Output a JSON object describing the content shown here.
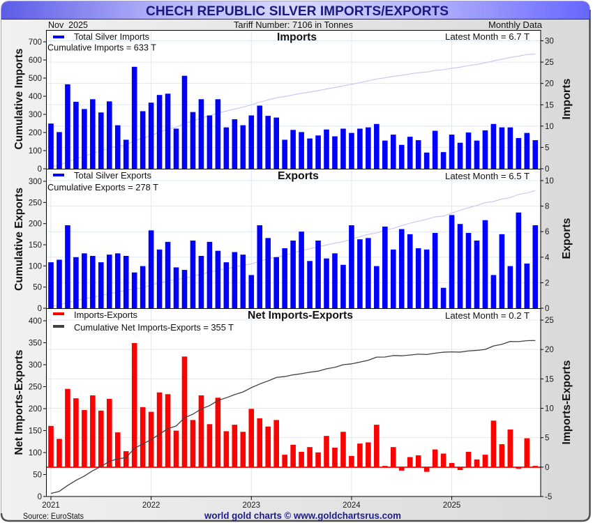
{
  "title": "CHECH REPUBLIC SILVER IMPORTS/EXPORTS",
  "header": {
    "date": "Nov  2025",
    "tariff": "Tariff Number: 7106 in Tonnes",
    "frequency": "Monthly Data"
  },
  "footer": {
    "source": "Source: EuroStats",
    "credit": "world gold charts © www.goldchartsrus.com"
  },
  "colors": {
    "title_bar": "#7070ff",
    "title_text": "#1a1a80",
    "credit_text": "#1c1c8c",
    "background": "#e6e6e6"
  },
  "chart_data": [
    {
      "type": "bar",
      "title": "Imports",
      "xlabel": "",
      "ylabel": "Cumulative Imports",
      "y2label": "Imports",
      "ylim": [
        0,
        700
      ],
      "y2lim": [
        0,
        30
      ],
      "yticks": [
        "0",
        "100",
        "200",
        "300",
        "400",
        "500",
        "600",
        "700"
      ],
      "y2ticks": [
        "0",
        "5",
        "10",
        "15",
        "20",
        "25",
        "30"
      ],
      "grid": true,
      "legend_position": "top-left",
      "legend": [
        {
          "label": "Total Silver Imports",
          "color": "#0000ff"
        }
      ],
      "annotations": {
        "cumulative": "Cumulative Imports = 633 T",
        "latest": "Latest Month = 6.7 T"
      },
      "categories": [
        "2021-01",
        "2021-02",
        "2021-03",
        "2021-04",
        "2021-05",
        "2021-06",
        "2021-07",
        "2021-08",
        "2021-09",
        "2021-10",
        "2021-11",
        "2021-12",
        "2022-01",
        "2022-02",
        "2022-03",
        "2022-04",
        "2022-05",
        "2022-06",
        "2022-07",
        "2022-08",
        "2022-09",
        "2022-10",
        "2022-11",
        "2022-12",
        "2023-01",
        "2023-02",
        "2023-03",
        "2023-04",
        "2023-05",
        "2023-06",
        "2023-07",
        "2023-08",
        "2023-09",
        "2023-10",
        "2023-11",
        "2023-12",
        "2024-01",
        "2024-02",
        "2024-03",
        "2024-04",
        "2024-05",
        "2024-06",
        "2024-07",
        "2024-08",
        "2024-09",
        "2024-10",
        "2024-11",
        "2024-12",
        "2025-01",
        "2025-02",
        "2025-03",
        "2025-04",
        "2025-05",
        "2025-06",
        "2025-07",
        "2025-08",
        "2025-09",
        "2025-10",
        "2025-11"
      ],
      "series": [
        {
          "name": "Total Silver Imports",
          "type": "bar",
          "axis": "right",
          "unit": "T",
          "color": "#0000ff",
          "values": [
            10.6,
            8.6,
            19.8,
            15.7,
            14.0,
            16.3,
            13.2,
            15.8,
            10.2,
            6.8,
            23.9,
            13.5,
            15.5,
            17.3,
            17.6,
            9.4,
            21.8,
            13.3,
            16.3,
            12.5,
            16.3,
            9.7,
            11.6,
            10.2,
            12.5,
            14.8,
            12.4,
            12.0,
            6.8,
            9.1,
            8.6,
            7.1,
            7.8,
            9.2,
            7.6,
            9.4,
            8.4,
            9.4,
            9.7,
            10.5,
            6.6,
            8.0,
            5.6,
            7.5,
            6.7,
            3.8,
            8.9,
            3.9,
            8.0,
            6.1,
            8.5,
            6.6,
            9.0,
            10.5,
            9.7,
            9.7,
            7.2,
            8.4,
            6.7
          ]
        },
        {
          "name": "Cumulative Imports",
          "type": "line",
          "axis": "left",
          "unit": "T",
          "color": "#c4c4f6",
          "values": [
            10.6,
            19.2,
            39.0,
            54.7,
            68.7,
            85.0,
            98.2,
            114.0,
            124.2,
            131.0,
            154.9,
            168.4,
            183.9,
            201.2,
            218.8,
            228.2,
            250.0,
            263.3,
            279.6,
            292.1,
            308.4,
            318.1,
            329.7,
            339.9,
            352.4,
            367.2,
            379.6,
            391.6,
            398.4,
            407.5,
            416.1,
            423.2,
            431.0,
            440.2,
            447.8,
            457.2,
            465.6,
            475.0,
            484.7,
            495.2,
            501.8,
            509.8,
            515.4,
            522.9,
            529.6,
            533.4,
            542.3,
            546.2,
            554.2,
            560.3,
            568.8,
            575.4,
            584.4,
            594.9,
            604.6,
            614.3,
            621.5,
            629.9,
            633.0
          ]
        }
      ]
    },
    {
      "type": "bar",
      "title": "Exports",
      "xlabel": "",
      "ylabel": "Cumulative Exports",
      "y2label": "Exports",
      "ylim": [
        0,
        300
      ],
      "y2lim": [
        0,
        10
      ],
      "yticks": [
        "0",
        "50",
        "100",
        "150",
        "200",
        "250",
        "300"
      ],
      "y2ticks": [
        "0",
        "2",
        "4",
        "6",
        "8",
        "10"
      ],
      "grid": true,
      "legend_position": "top-left",
      "legend": [
        {
          "label": "Total Silver Exports",
          "color": "#0000ff"
        }
      ],
      "annotations": {
        "cumulative": "Cumulative Exports = 278 T",
        "latest": "Latest Month = 6.5 T"
      },
      "categories": [
        "2021-01",
        "2021-02",
        "2021-03",
        "2021-04",
        "2021-05",
        "2021-06",
        "2021-07",
        "2021-08",
        "2021-09",
        "2021-10",
        "2021-11",
        "2021-12",
        "2022-01",
        "2022-02",
        "2022-03",
        "2022-04",
        "2022-05",
        "2022-06",
        "2022-07",
        "2022-08",
        "2022-09",
        "2022-10",
        "2022-11",
        "2022-12",
        "2023-01",
        "2023-02",
        "2023-03",
        "2023-04",
        "2023-05",
        "2023-06",
        "2023-07",
        "2023-08",
        "2023-09",
        "2023-10",
        "2023-11",
        "2023-12",
        "2024-01",
        "2024-02",
        "2024-03",
        "2024-04",
        "2024-05",
        "2024-06",
        "2024-07",
        "2024-08",
        "2024-09",
        "2024-10",
        "2024-11",
        "2024-12",
        "2025-01",
        "2025-02",
        "2025-03",
        "2025-04",
        "2025-05",
        "2025-06",
        "2025-07",
        "2025-08",
        "2025-09",
        "2025-10",
        "2025-11"
      ],
      "series": [
        {
          "name": "Total Silver Exports",
          "type": "bar",
          "axis": "right",
          "unit": "T",
          "color": "#0000ff",
          "values": [
            3.6,
            3.8,
            6.5,
            4.0,
            4.3,
            4.1,
            3.6,
            4.2,
            4.3,
            4.1,
            2.8,
            3.3,
            6.1,
            4.6,
            5.2,
            3.2,
            3.0,
            5.3,
            4.1,
            5.2,
            4.5,
            3.6,
            4.4,
            4.2,
            2.6,
            6.5,
            5.5,
            4.0,
            4.7,
            5.3,
            6.0,
            3.7,
            5.3,
            3.9,
            4.3,
            3.4,
            6.5,
            5.4,
            5.5,
            3.3,
            6.4,
            4.6,
            6.2,
            5.8,
            4.7,
            4.6,
            5.9,
            1.6,
            7.3,
            6.6,
            5.9,
            5.3,
            6.9,
            2.6,
            5.8,
            3.3,
            7.5,
            3.5,
            6.5
          ]
        },
        {
          "name": "Cumulative Exports",
          "type": "line",
          "axis": "left",
          "unit": "T",
          "color": "#c4c4f6",
          "values": [
            3.6,
            7.4,
            13.9,
            17.9,
            22.2,
            26.3,
            29.9,
            34.1,
            38.4,
            42.5,
            45.3,
            48.6,
            54.7,
            59.3,
            64.5,
            67.7,
            70.7,
            76.0,
            80.1,
            85.3,
            89.8,
            93.4,
            97.8,
            102.0,
            104.6,
            111.1,
            116.6,
            120.6,
            125.3,
            130.6,
            136.6,
            140.3,
            145.6,
            149.5,
            153.8,
            157.2,
            163.7,
            169.1,
            174.6,
            177.9,
            184.3,
            188.9,
            195.1,
            200.9,
            205.6,
            210.2,
            216.1,
            217.7,
            225.0,
            231.6,
            237.5,
            242.8,
            249.7,
            252.3,
            258.1,
            261.4,
            268.9,
            272.4,
            278.0
          ]
        }
      ]
    },
    {
      "type": "bar",
      "title": "Net Imports-Exports",
      "xlabel": "",
      "ylabel": "Net Imports-Exports",
      "y2label": "Imports-Exports",
      "ylim": [
        0,
        400
      ],
      "y2lim": [
        -5,
        25
      ],
      "yticks": [
        "0",
        "50",
        "100",
        "150",
        "200",
        "250",
        "300",
        "350",
        "400"
      ],
      "y2ticks": [
        "-5",
        "0",
        "5",
        "10",
        "15",
        "20",
        "25"
      ],
      "xticks": [
        "2021",
        "2022",
        "2023",
        "2024",
        "2025"
      ],
      "grid": true,
      "legend_position": "top-left",
      "legend": [
        {
          "label": "Imports-Exports",
          "color": "#ff0000"
        },
        {
          "label": "Cumulative Net Imports-Exports = 355 T",
          "color": "#404040"
        }
      ],
      "annotations": {
        "latest": "Latest Month = 0.2 T"
      },
      "categories": [
        "2021-01",
        "2021-02",
        "2021-03",
        "2021-04",
        "2021-05",
        "2021-06",
        "2021-07",
        "2021-08",
        "2021-09",
        "2021-10",
        "2021-11",
        "2021-12",
        "2022-01",
        "2022-02",
        "2022-03",
        "2022-04",
        "2022-05",
        "2022-06",
        "2022-07",
        "2022-08",
        "2022-09",
        "2022-10",
        "2022-11",
        "2022-12",
        "2023-01",
        "2023-02",
        "2023-03",
        "2023-04",
        "2023-05",
        "2023-06",
        "2023-07",
        "2023-08",
        "2023-09",
        "2023-10",
        "2023-11",
        "2023-12",
        "2024-01",
        "2024-02",
        "2024-03",
        "2024-04",
        "2024-05",
        "2024-06",
        "2024-07",
        "2024-08",
        "2024-09",
        "2024-10",
        "2024-11",
        "2024-12",
        "2025-01",
        "2025-02",
        "2025-03",
        "2025-04",
        "2025-05",
        "2025-06",
        "2025-07",
        "2025-08",
        "2025-09",
        "2025-10",
        "2025-11"
      ],
      "series": [
        {
          "name": "Imports-Exports",
          "type": "bar",
          "axis": "right",
          "unit": "T",
          "color": "#ff0000",
          "values": [
            7.0,
            4.8,
            13.3,
            11.7,
            9.7,
            12.2,
            9.6,
            11.6,
            5.9,
            2.7,
            21.1,
            10.2,
            9.4,
            12.7,
            12.4,
            6.2,
            18.8,
            8.0,
            12.2,
            7.3,
            11.8,
            6.1,
            7.2,
            6.0,
            9.9,
            8.3,
            6.9,
            8.0,
            2.1,
            3.8,
            2.6,
            3.4,
            2.5,
            5.3,
            3.3,
            6.0,
            1.9,
            4.0,
            4.2,
            7.2,
            0.2,
            3.4,
            -0.6,
            1.7,
            2.0,
            -0.8,
            3.0,
            2.3,
            0.7,
            -0.5,
            2.6,
            1.3,
            2.1,
            7.9,
            3.9,
            6.4,
            -0.3,
            4.9,
            0.2
          ]
        },
        {
          "name": "Cumulative Net Imports-Exports",
          "type": "line",
          "axis": "left",
          "unit": "T",
          "color": "#404040",
          "values": [
            7.0,
            11.8,
            25.1,
            36.8,
            46.5,
            58.7,
            68.3,
            79.9,
            85.8,
            88.5,
            109.6,
            119.8,
            129.2,
            141.9,
            154.3,
            160.5,
            179.3,
            187.3,
            199.5,
            206.8,
            218.6,
            224.7,
            231.9,
            237.9,
            247.8,
            256.1,
            263.0,
            271.0,
            273.1,
            276.9,
            279.5,
            282.9,
            285.4,
            290.7,
            294.0,
            300.0,
            301.9,
            305.9,
            310.1,
            317.3,
            317.5,
            320.9,
            320.3,
            322.0,
            324.0,
            323.2,
            326.2,
            328.5,
            329.2,
            328.7,
            331.3,
            332.6,
            334.7,
            342.6,
            346.5,
            352.9,
            352.6,
            354.8,
            355.0
          ]
        }
      ]
    }
  ]
}
